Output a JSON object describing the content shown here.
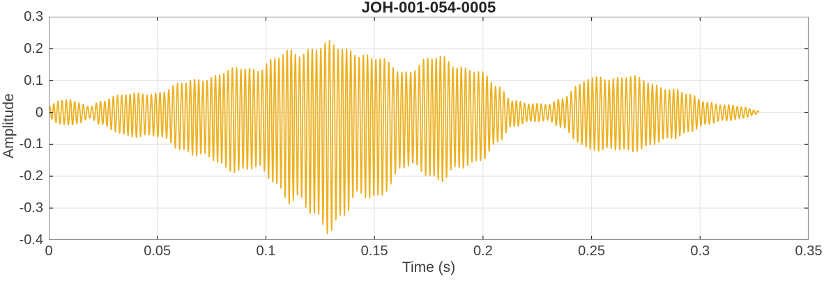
{
  "chart_data": {
    "type": "line",
    "title": "JOH-001-054-0005",
    "xlabel": "Time (s)",
    "ylabel": "Amplitude",
    "xlim": [
      0,
      0.35
    ],
    "ylim": [
      -0.4,
      0.3
    ],
    "xticks": [
      0,
      0.05,
      0.1,
      0.15,
      0.2,
      0.25,
      0.3,
      0.35
    ],
    "xtick_labels": [
      "0",
      "0.05",
      "0.1",
      "0.15",
      "0.2",
      "0.25",
      "0.3",
      "0.35"
    ],
    "yticks": [
      -0.4,
      -0.3,
      -0.2,
      -0.1,
      0,
      0.1,
      0.2,
      0.3
    ],
    "ytick_labels": [
      "-0.4",
      "-0.3",
      "-0.2",
      "-0.1",
      "0",
      "0.1",
      "0.2",
      "0.3"
    ],
    "grid": true,
    "legend": false,
    "line_color": "#EDB120",
    "line_width": 1.8,
    "box_color": "#8C8C8C",
    "grid_color": "#E6E6E6",
    "tick_color": "#2B2B2B",
    "text_color": "#3D3D3D",
    "title_color": "#212121",
    "background": "#FFFFFF",
    "signal": {
      "description": "speech-like amplitude-modulated waveform with two bursts",
      "t_start": 0,
      "t_end": 0.327,
      "carrier_hz": 512,
      "envelope_keypoints": [
        [
          0.0,
          0.025,
          -0.025
        ],
        [
          0.004,
          0.045,
          -0.045
        ],
        [
          0.009,
          0.05,
          -0.05
        ],
        [
          0.014,
          0.03,
          -0.035
        ],
        [
          0.019,
          0.02,
          -0.02
        ],
        [
          0.024,
          0.04,
          -0.045
        ],
        [
          0.03,
          0.06,
          -0.07
        ],
        [
          0.038,
          0.065,
          -0.085
        ],
        [
          0.046,
          0.075,
          -0.095
        ],
        [
          0.054,
          0.09,
          -0.11
        ],
        [
          0.062,
          0.105,
          -0.135
        ],
        [
          0.072,
          0.125,
          -0.165
        ],
        [
          0.082,
          0.14,
          -0.19
        ],
        [
          0.092,
          0.17,
          -0.22
        ],
        [
          0.102,
          0.2,
          -0.26
        ],
        [
          0.112,
          0.22,
          -0.32
        ],
        [
          0.122,
          0.24,
          -0.385
        ],
        [
          0.128,
          0.23,
          -0.39
        ],
        [
          0.135,
          0.22,
          -0.36
        ],
        [
          0.142,
          0.24,
          -0.34
        ],
        [
          0.15,
          0.21,
          -0.33
        ],
        [
          0.157,
          0.18,
          -0.27
        ],
        [
          0.163,
          0.16,
          -0.22
        ],
        [
          0.172,
          0.18,
          -0.21
        ],
        [
          0.182,
          0.185,
          -0.225
        ],
        [
          0.192,
          0.17,
          -0.21
        ],
        [
          0.2,
          0.14,
          -0.165
        ],
        [
          0.207,
          0.1,
          -0.115
        ],
        [
          0.214,
          0.05,
          -0.06
        ],
        [
          0.221,
          0.03,
          -0.032
        ],
        [
          0.229,
          0.027,
          -0.028
        ],
        [
          0.236,
          0.05,
          -0.055
        ],
        [
          0.243,
          0.09,
          -0.1
        ],
        [
          0.25,
          0.125,
          -0.135
        ],
        [
          0.257,
          0.145,
          -0.16
        ],
        [
          0.264,
          0.14,
          -0.15
        ],
        [
          0.272,
          0.12,
          -0.13
        ],
        [
          0.28,
          0.1,
          -0.115
        ],
        [
          0.288,
          0.08,
          -0.09
        ],
        [
          0.295,
          0.06,
          -0.065
        ],
        [
          0.303,
          0.042,
          -0.05
        ],
        [
          0.311,
          0.03,
          -0.033
        ],
        [
          0.319,
          0.02,
          -0.022
        ],
        [
          0.327,
          0.006,
          -0.006
        ]
      ]
    }
  }
}
